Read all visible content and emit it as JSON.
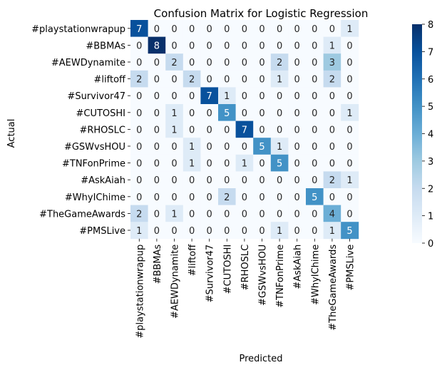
{
  "chart_data": {
    "type": "heatmap",
    "title": "Confusion Matrix for Logistic Regression",
    "xlabel": "Predicted",
    "ylabel": "Actual",
    "categories": [
      "#playstationwrapup",
      "#BBMAs",
      "#AEWDynamite",
      "#liftoff",
      "#Survivor47",
      "#CUTOSHI",
      "#RHOSLC",
      "#GSWvsHOU",
      "#TNFonPrime",
      "#AskAiah",
      "#WhyIChime",
      "#TheGameAwards",
      "#PMSLive"
    ],
    "values": [
      [
        7,
        0,
        0,
        0,
        0,
        0,
        0,
        0,
        0,
        0,
        0,
        0,
        1
      ],
      [
        0,
        8,
        0,
        0,
        0,
        0,
        0,
        0,
        0,
        0,
        0,
        1,
        0
      ],
      [
        0,
        0,
        2,
        0,
        0,
        0,
        0,
        0,
        2,
        0,
        0,
        3,
        0
      ],
      [
        2,
        0,
        0,
        2,
        0,
        0,
        0,
        0,
        1,
        0,
        0,
        2,
        0
      ],
      [
        0,
        0,
        0,
        0,
        7,
        1,
        0,
        0,
        0,
        0,
        0,
        0,
        0
      ],
      [
        0,
        0,
        1,
        0,
        0,
        5,
        0,
        0,
        0,
        0,
        0,
        0,
        1
      ],
      [
        0,
        0,
        1,
        0,
        0,
        0,
        7,
        0,
        0,
        0,
        0,
        0,
        0
      ],
      [
        0,
        0,
        0,
        1,
        0,
        0,
        0,
        5,
        1,
        0,
        0,
        0,
        0
      ],
      [
        0,
        0,
        0,
        1,
        0,
        0,
        1,
        0,
        5,
        0,
        0,
        0,
        0
      ],
      [
        0,
        0,
        0,
        0,
        0,
        0,
        0,
        0,
        0,
        0,
        0,
        2,
        1
      ],
      [
        0,
        0,
        0,
        0,
        0,
        2,
        0,
        0,
        0,
        0,
        5,
        0,
        0
      ],
      [
        2,
        0,
        1,
        0,
        0,
        0,
        0,
        0,
        0,
        0,
        0,
        4,
        0
      ],
      [
        1,
        0,
        0,
        0,
        0,
        0,
        0,
        0,
        1,
        0,
        0,
        1,
        5
      ]
    ],
    "vmin": 0,
    "vmax": 8,
    "colorbar_ticks": [
      0,
      1,
      2,
      3,
      4,
      5,
      6,
      7,
      8
    ],
    "colormap": "Blues",
    "colors": {
      "low": "#f7fbff",
      "high": "#08306b",
      "text_dark": "#262626",
      "text_light": "#ffffff"
    },
    "grid": false
  }
}
